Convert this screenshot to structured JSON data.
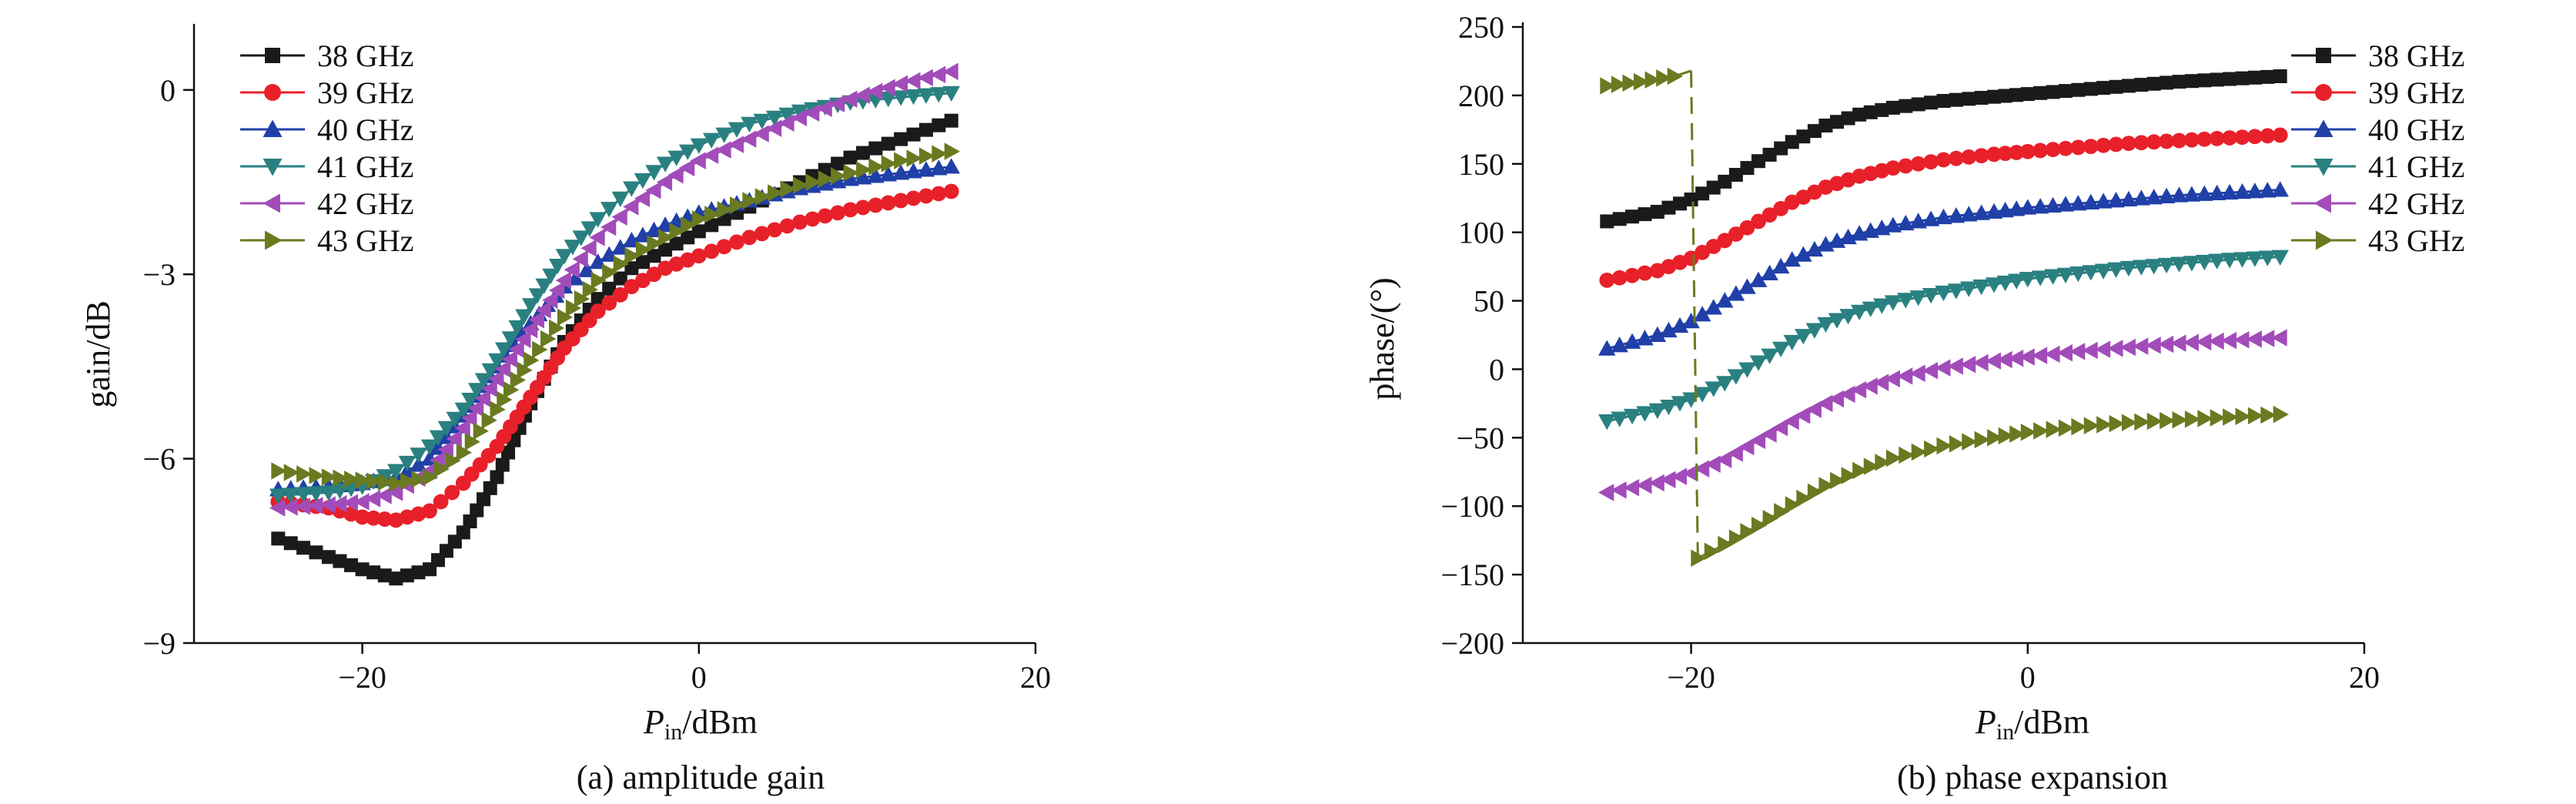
{
  "chart_data": [
    {
      "type": "line",
      "caption": "(a) amplitude gain",
      "xlabel_main": "P",
      "xlabel_sub": "in",
      "xlabel_rest": "/dBm",
      "ylabel": "gain/dB",
      "xlim": [
        -30,
        20
      ],
      "ylim": [
        -9,
        1
      ],
      "xticks": [
        -20,
        0,
        20
      ],
      "xtick_labels": [
        "−20",
        "0",
        "20"
      ],
      "yticks": [
        0,
        -3,
        -6,
        -9
      ],
      "ytick_labels": [
        "0",
        "−3",
        "−6",
        "−9"
      ],
      "grid": false,
      "legend_position": "top-left",
      "series": [
        {
          "name": "38 GHz",
          "color": "#1a1a1a",
          "marker": "square",
          "points": [
            [
              -25,
              -7.3
            ],
            [
              -22,
              -7.6
            ],
            [
              -20,
              -7.8
            ],
            [
              -18,
              -7.95
            ],
            [
              -16,
              -7.8
            ],
            [
              -14,
              -7.2
            ],
            [
              -12,
              -6.3
            ],
            [
              -10,
              -5.1
            ],
            [
              -8,
              -4.1
            ],
            [
              -6,
              -3.4
            ],
            [
              -4,
              -2.9
            ],
            [
              -2,
              -2.6
            ],
            [
              0,
              -2.3
            ],
            [
              3,
              -1.9
            ],
            [
              6,
              -1.5
            ],
            [
              9,
              -1.1
            ],
            [
              12,
              -0.8
            ],
            [
              15,
              -0.5
            ]
          ]
        },
        {
          "name": "39 GHz",
          "color": "#e8202a",
          "marker": "circle",
          "points": [
            [
              -25,
              -6.7
            ],
            [
              -22,
              -6.8
            ],
            [
              -20,
              -6.95
            ],
            [
              -18,
              -7.0
            ],
            [
              -16,
              -6.85
            ],
            [
              -14,
              -6.4
            ],
            [
              -12,
              -5.8
            ],
            [
              -10,
              -5.0
            ],
            [
              -8,
              -4.2
            ],
            [
              -6,
              -3.6
            ],
            [
              -4,
              -3.2
            ],
            [
              -2,
              -2.9
            ],
            [
              0,
              -2.7
            ],
            [
              3,
              -2.4
            ],
            [
              6,
              -2.15
            ],
            [
              9,
              -1.95
            ],
            [
              12,
              -1.8
            ],
            [
              15,
              -1.65
            ]
          ]
        },
        {
          "name": "40 GHz",
          "color": "#2040a8",
          "marker": "triangle-up",
          "points": [
            [
              -25,
              -6.5
            ],
            [
              -22,
              -6.45
            ],
            [
              -20,
              -6.4
            ],
            [
              -18,
              -6.3
            ],
            [
              -16,
              -6.0
            ],
            [
              -14,
              -5.3
            ],
            [
              -12,
              -4.5
            ],
            [
              -10,
              -3.8
            ],
            [
              -8,
              -3.2
            ],
            [
              -6,
              -2.8
            ],
            [
              -4,
              -2.45
            ],
            [
              -2,
              -2.2
            ],
            [
              0,
              -2.0
            ],
            [
              3,
              -1.8
            ],
            [
              6,
              -1.6
            ],
            [
              9,
              -1.45
            ],
            [
              12,
              -1.35
            ],
            [
              15,
              -1.25
            ]
          ]
        },
        {
          "name": "41 GHz",
          "color": "#2a8080",
          "marker": "triangle-down",
          "points": [
            [
              -25,
              -6.6
            ],
            [
              -22,
              -6.55
            ],
            [
              -20,
              -6.45
            ],
            [
              -18,
              -6.2
            ],
            [
              -16,
              -5.8
            ],
            [
              -14,
              -5.2
            ],
            [
              -12,
              -4.4
            ],
            [
              -10,
              -3.5
            ],
            [
              -8,
              -2.7
            ],
            [
              -6,
              -2.1
            ],
            [
              -4,
              -1.6
            ],
            [
              -2,
              -1.2
            ],
            [
              0,
              -0.9
            ],
            [
              3,
              -0.55
            ],
            [
              6,
              -0.35
            ],
            [
              9,
              -0.2
            ],
            [
              12,
              -0.12
            ],
            [
              15,
              -0.05
            ]
          ]
        },
        {
          "name": "42 GHz",
          "color": "#a24cba",
          "marker": "triangle-left",
          "points": [
            [
              -25,
              -6.8
            ],
            [
              -22,
              -6.75
            ],
            [
              -20,
              -6.7
            ],
            [
              -18,
              -6.55
            ],
            [
              -16,
              -6.2
            ],
            [
              -14,
              -5.5
            ],
            [
              -12,
              -4.7
            ],
            [
              -10,
              -3.9
            ],
            [
              -8,
              -3.1
            ],
            [
              -6,
              -2.4
            ],
            [
              -4,
              -1.9
            ],
            [
              -2,
              -1.5
            ],
            [
              0,
              -1.15
            ],
            [
              3,
              -0.8
            ],
            [
              6,
              -0.45
            ],
            [
              9,
              -0.15
            ],
            [
              12,
              0.1
            ],
            [
              15,
              0.3
            ]
          ]
        },
        {
          "name": "43 GHz",
          "color": "#6a7a20",
          "marker": "triangle-right",
          "points": [
            [
              -25,
              -6.2
            ],
            [
              -22,
              -6.3
            ],
            [
              -20,
              -6.35
            ],
            [
              -18,
              -6.4
            ],
            [
              -16,
              -6.3
            ],
            [
              -14,
              -5.9
            ],
            [
              -12,
              -5.2
            ],
            [
              -10,
              -4.4
            ],
            [
              -8,
              -3.7
            ],
            [
              -6,
              -3.1
            ],
            [
              -4,
              -2.7
            ],
            [
              -2,
              -2.4
            ],
            [
              0,
              -2.1
            ],
            [
              3,
              -1.8
            ],
            [
              6,
              -1.55
            ],
            [
              9,
              -1.35
            ],
            [
              12,
              -1.15
            ],
            [
              15,
              -1.0
            ]
          ]
        }
      ]
    },
    {
      "type": "line",
      "caption": "(b) phase expansion",
      "xlabel_main": "P",
      "xlabel_sub": "in",
      "xlabel_rest": "/dBm",
      "ylabel": "phase/(°)",
      "xlim": [
        -30,
        20
      ],
      "ylim": [
        -200,
        250
      ],
      "xticks": [
        -20,
        0,
        20
      ],
      "xtick_labels": [
        "−20",
        "0",
        "20"
      ],
      "yticks": [
        250,
        200,
        150,
        100,
        50,
        0,
        -50,
        -100,
        -150,
        -200
      ],
      "ytick_labels": [
        "250",
        "200",
        "150",
        "100",
        "50",
        "0",
        "−50",
        "−100",
        "−150",
        "−200"
      ],
      "grid": false,
      "legend_position": "top-right",
      "series": [
        {
          "name": "38 GHz",
          "color": "#1a1a1a",
          "marker": "square",
          "points": [
            [
              -25,
              108
            ],
            [
              -22,
              115
            ],
            [
              -20,
              124
            ],
            [
              -18,
              137
            ],
            [
              -16,
              152
            ],
            [
              -14,
              166
            ],
            [
              -12,
              178
            ],
            [
              -10,
              186
            ],
            [
              -8,
              191
            ],
            [
              -5,
              196
            ],
            [
              -2,
              199
            ],
            [
              0,
              201
            ],
            [
              3,
              204
            ],
            [
              6,
              207
            ],
            [
              9,
              210
            ],
            [
              12,
              212
            ],
            [
              15,
              214
            ]
          ]
        },
        {
          "name": "39 GHz",
          "color": "#e8202a",
          "marker": "circle",
          "points": [
            [
              -25,
              65
            ],
            [
              -22,
              72
            ],
            [
              -20,
              81
            ],
            [
              -18,
              94
            ],
            [
              -16,
              108
            ],
            [
              -14,
              122
            ],
            [
              -12,
              133
            ],
            [
              -10,
              141
            ],
            [
              -8,
              147
            ],
            [
              -5,
              153
            ],
            [
              -2,
              157
            ],
            [
              0,
              159
            ],
            [
              3,
              162
            ],
            [
              6,
              165
            ],
            [
              9,
              167
            ],
            [
              12,
              169
            ],
            [
              15,
              171
            ]
          ]
        },
        {
          "name": "40 GHz",
          "color": "#2040a8",
          "marker": "triangle-up",
          "points": [
            [
              -25,
              15
            ],
            [
              -22,
              25
            ],
            [
              -20,
              35
            ],
            [
              -18,
              50
            ],
            [
              -16,
              65
            ],
            [
              -14,
              80
            ],
            [
              -12,
              91
            ],
            [
              -10,
              99
            ],
            [
              -8,
              105
            ],
            [
              -5,
              111
            ],
            [
              -2,
              115
            ],
            [
              0,
              118
            ],
            [
              3,
              121
            ],
            [
              6,
              124
            ],
            [
              9,
              127
            ],
            [
              12,
              129
            ],
            [
              15,
              131
            ]
          ]
        },
        {
          "name": "41 GHz",
          "color": "#2a8080",
          "marker": "triangle-down",
          "points": [
            [
              -25,
              -38
            ],
            [
              -22,
              -30
            ],
            [
              -20,
              -22
            ],
            [
              -18,
              -10
            ],
            [
              -16,
              5
            ],
            [
              -14,
              20
            ],
            [
              -12,
              33
            ],
            [
              -10,
              42
            ],
            [
              -8,
              49
            ],
            [
              -5,
              56
            ],
            [
              -2,
              62
            ],
            [
              0,
              66
            ],
            [
              3,
              70
            ],
            [
              6,
              74
            ],
            [
              9,
              77
            ],
            [
              12,
              80
            ],
            [
              15,
              82
            ]
          ]
        },
        {
          "name": "42 GHz",
          "color": "#a24cba",
          "marker": "triangle-left",
          "points": [
            [
              -25,
              -90
            ],
            [
              -22,
              -83
            ],
            [
              -20,
              -76
            ],
            [
              -18,
              -66
            ],
            [
              -16,
              -52
            ],
            [
              -14,
              -38
            ],
            [
              -12,
              -25
            ],
            [
              -10,
              -15
            ],
            [
              -8,
              -7
            ],
            [
              -5,
              1
            ],
            [
              -2,
              6
            ],
            [
              0,
              9
            ],
            [
              3,
              13
            ],
            [
              6,
              16
            ],
            [
              9,
              19
            ],
            [
              12,
              21
            ],
            [
              15,
              23
            ]
          ]
        },
        {
          "name": "43 GHz",
          "color": "#6a7a20",
          "marker": "triangle-right",
          "points": [
            [
              -25,
              207
            ],
            [
              -23,
              210
            ],
            [
              -21,
              214
            ],
            [
              -20,
              218
            ],
            [
              -19.6,
              -138
            ],
            [
              -18,
              -128
            ],
            [
              -16,
              -114
            ],
            [
              -14,
              -99
            ],
            [
              -12,
              -85
            ],
            [
              -10,
              -74
            ],
            [
              -8,
              -65
            ],
            [
              -5,
              -56
            ],
            [
              -2,
              -50
            ],
            [
              0,
              -46
            ],
            [
              3,
              -42
            ],
            [
              6,
              -39
            ],
            [
              9,
              -37
            ],
            [
              12,
              -35
            ],
            [
              15,
              -33
            ]
          ]
        }
      ]
    }
  ]
}
